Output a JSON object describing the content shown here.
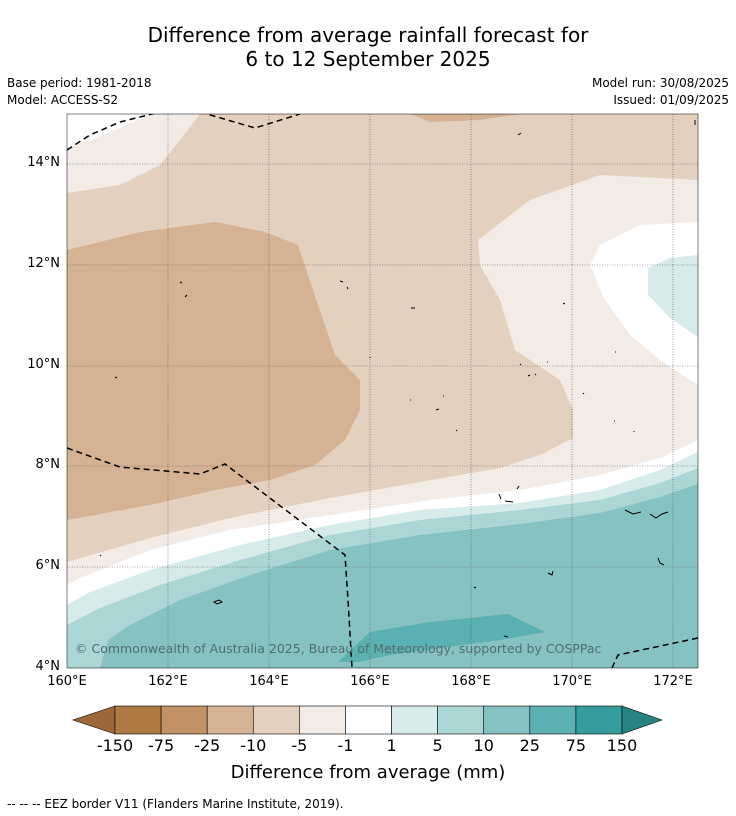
{
  "title_line1": "Difference from average rainfall forecast for",
  "title_line2": "6 to 12 September 2025",
  "base_period": "Base period: 1981-2018",
  "model": "Model: ACCESS-S2",
  "model_run": "Model run: 30/08/2025",
  "issued": "Issued: 01/09/2025",
  "copyright": "© Commonwealth of Australia 2025, Bureau of Meteorology, supported by COSPPac",
  "lat_labels": [
    "14°N",
    "12°N",
    "10°N",
    "8°N",
    "6°N",
    "4°N"
  ],
  "lon_labels": [
    "160°E",
    "162°E",
    "164°E",
    "166°E",
    "168°E",
    "170°E",
    "172°E"
  ],
  "colorbar": {
    "title": "Difference from average (mm)",
    "labels": [
      "-150",
      "-75",
      "-25",
      "-10",
      "-5",
      "-1",
      "1",
      "5",
      "10",
      "25",
      "75",
      "150"
    ],
    "colors": [
      "#9c6a3a",
      "#b07a44",
      "#c29166",
      "#d4b293",
      "#e4d0be",
      "#f3ebe6",
      "#ffffff",
      "#d6ebea",
      "#acd6d6",
      "#87c2c2",
      "#5bb0b1",
      "#369c9c",
      "#2a8383"
    ]
  },
  "footnote": "-- -- -- EEZ border V11 (Flanders Marine Institute, 2019)."
}
